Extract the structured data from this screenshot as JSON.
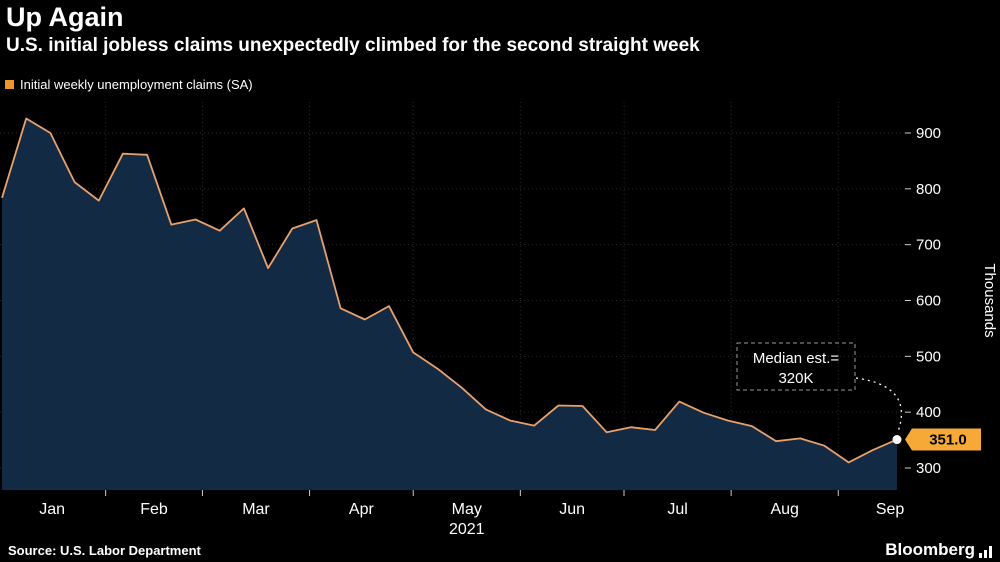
{
  "header": {
    "title": "Up Again",
    "subtitle": "U.S. initial jobless claims unexpectedly climbed for the second straight week"
  },
  "legend": {
    "label": "Initial weekly unemployment claims (SA)",
    "swatch_color": "#ef9529"
  },
  "chart_data": {
    "type": "area",
    "title": "Up Again",
    "ylabel": "Thousands",
    "ylim": [
      260,
      960
    ],
    "yticks": [
      300,
      400,
      500,
      600,
      700,
      800,
      900
    ],
    "x_months": [
      "Jan",
      "Feb",
      "Mar",
      "Apr",
      "May",
      "Jun",
      "Jul",
      "Aug",
      "Sep"
    ],
    "year_label": "2021",
    "x_start_day": 2,
    "x_step_days": 7,
    "series": [
      {
        "name": "Initial weekly unemployment claims (SA)",
        "values": [
          784,
          926,
          900,
          812,
          779,
          863,
          861,
          736,
          745,
          725,
          765,
          658,
          729,
          744,
          586,
          566,
          590,
          507,
          478,
          444,
          405,
          385,
          376,
          412,
          411,
          364,
          373,
          368,
          419,
          399,
          385,
          375,
          348,
          353,
          340,
          310,
          332,
          351
        ]
      }
    ],
    "last_value_label": "351.0",
    "annotation": {
      "line1": "Median est.=",
      "line2": "320K"
    },
    "colors": {
      "area": "#132a44",
      "line": "#e7a16d",
      "badge": "#f7a938",
      "grid": "#2b2b2b",
      "axis_text": "#ffffff",
      "tick": "#cccccc"
    },
    "legend_position": "top-left",
    "grid": true
  },
  "footer": {
    "source": "Source: U.S. Labor Department",
    "brand": "Bloomberg"
  }
}
